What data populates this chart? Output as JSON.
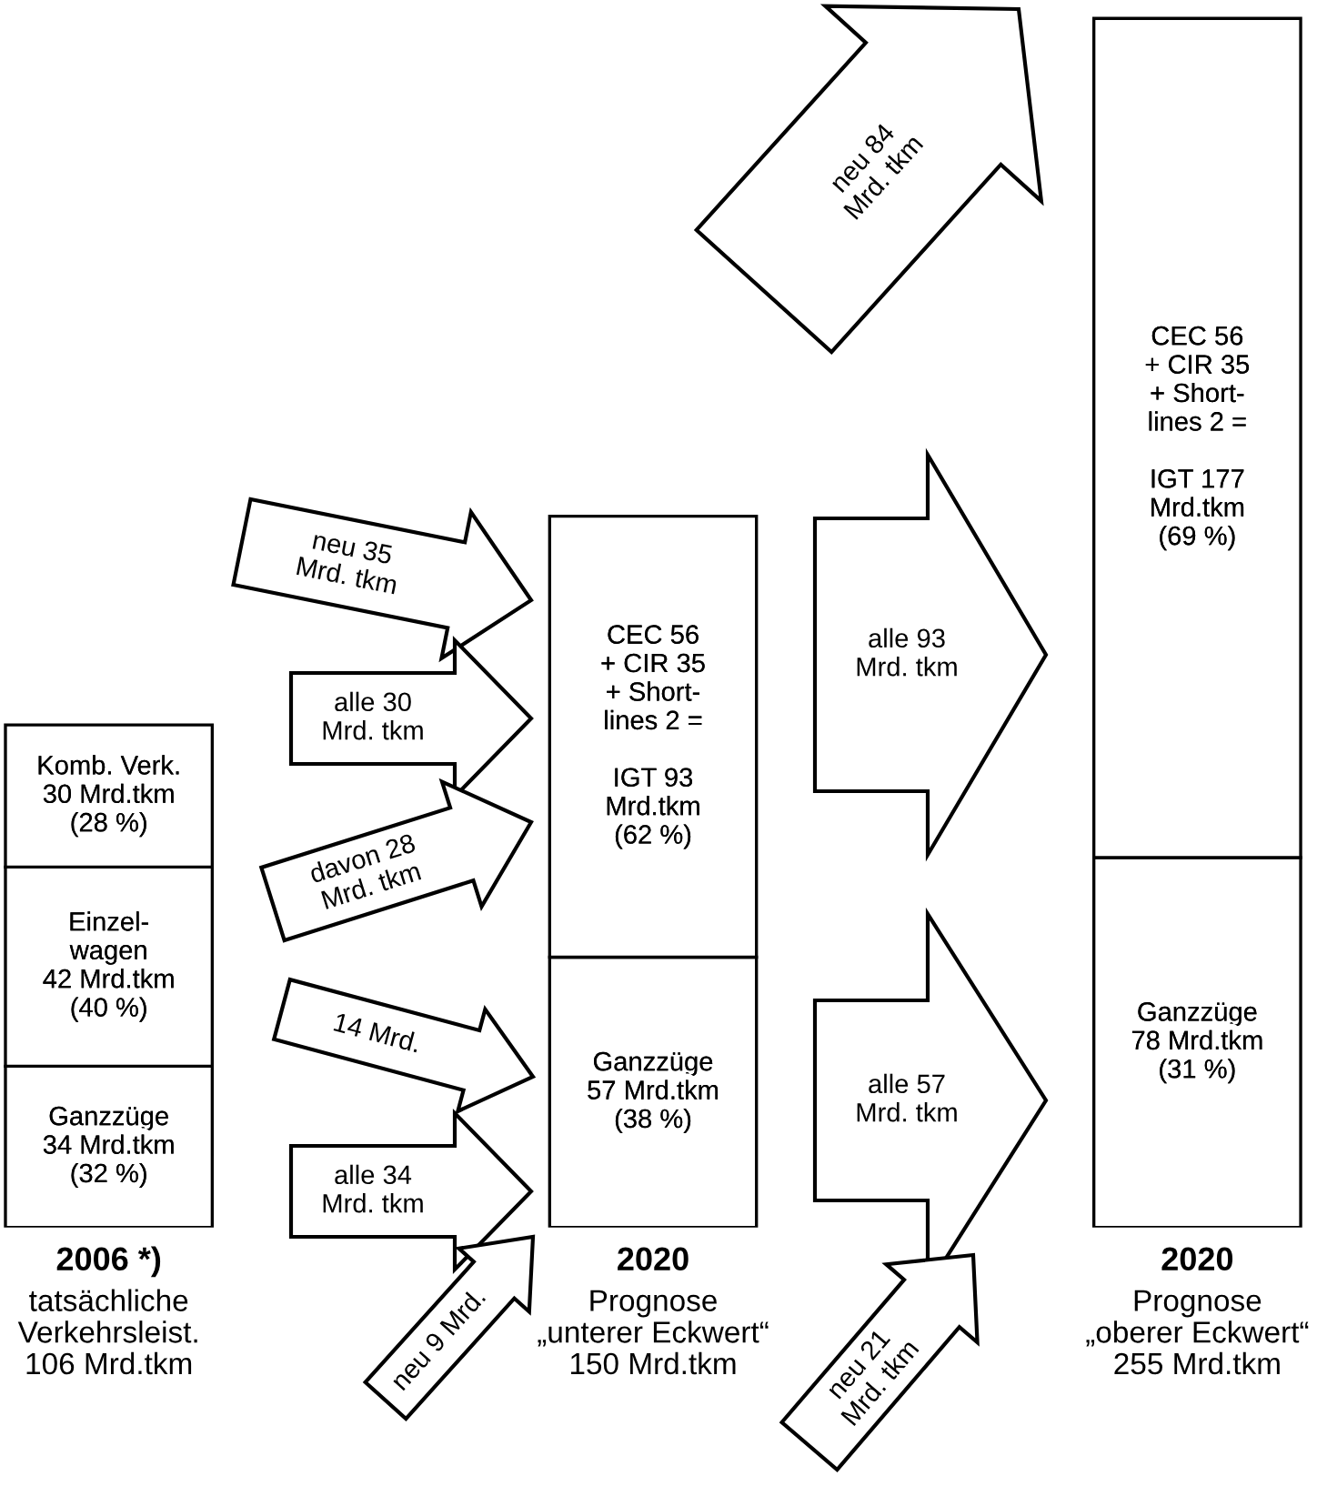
{
  "chart_data": {
    "type": "bar",
    "stacked": true,
    "categories": [
      "2006 *)\ntatsächliche\nVerkehrsleist.\n106 Mrd.tkm",
      "2020\nPrognose\n„unterer Eckwert“\n150 Mrd.tkm",
      "2020\nPrognose\n„oberer Eckwert“\n255 Mrd.tkm"
    ],
    "series": [
      {
        "color": "#ffffff",
        "values": [
          34,
          57,
          78
        ],
        "value_labels": [
          "Ganzzüge\n34 Mrd.tkm\n(32 %)",
          "Ganzzüge\n57 Mrd.tkm\n(38 %)",
          "Ganzzüge\n78 Mrd.tkm\n(31 %)"
        ]
      },
      {
        "color": "#ffffff",
        "values": [
          42,
          null,
          null
        ],
        "value_labels": [
          "Einzel-\nwagen\n42 Mrd.tkm\n(40 %)",
          null,
          null
        ]
      },
      {
        "color": "#ffffff",
        "values": [
          30,
          null,
          null
        ],
        "value_labels": [
          "Komb. Verk.\n30 Mrd.tkm\n(28 %)",
          null,
          null
        ]
      },
      {
        "color": "#ffffff",
        "values": [
          null,
          93,
          177
        ],
        "value_labels": [
          null,
          "CEC 56\n+ CIR 35\n+ Short-\nlines 2 =\n\nIGT 93\nMrd.tkm\n(62 %)",
          "CEC 56\n+ CIR 35\n+ Short-\nlines 2 =\n\nIGT 177\nMrd.tkm\n(69 %)"
        ]
      }
    ],
    "annotations": [
      "neu 35\nMrd. tkm",
      "alle 30\nMrd. tkm",
      "davon 28\nMrd. tkm",
      "14 Mrd.",
      "alle 34\nMrd. tkm",
      "neu 9 Mrd.",
      "neu 84\nMrd. tkm",
      "alle 93\nMrd. tkm",
      "alle 57\nMrd. tkm",
      "neu 21\nMrd. tkm"
    ]
  }
}
